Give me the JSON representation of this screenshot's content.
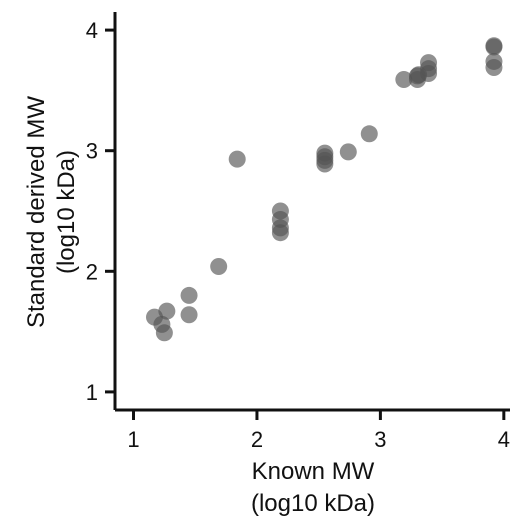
{
  "chart_data": {
    "type": "scatter",
    "title": "",
    "xlabel": [
      "Known MW",
      "(log10 kDa)"
    ],
    "ylabel": [
      "Standard derived MW",
      "(log10 kDa)"
    ],
    "xlim": [
      0.85,
      4.05
    ],
    "ylim": [
      0.85,
      4.15
    ],
    "x_ticks": [
      1,
      2,
      3,
      4
    ],
    "y_ticks": [
      1,
      2,
      3,
      4
    ],
    "x_tick_labels": [
      "1",
      "2",
      "3",
      "4"
    ],
    "y_tick_labels": [
      "1",
      "2",
      "3",
      "4"
    ],
    "grid": false,
    "legend": "none",
    "point_color": "#555555",
    "point_opacity": 0.65,
    "points": [
      {
        "x": 1.17,
        "y": 1.62
      },
      {
        "x": 1.23,
        "y": 1.56
      },
      {
        "x": 1.25,
        "y": 1.49
      },
      {
        "x": 1.27,
        "y": 1.67
      },
      {
        "x": 1.45,
        "y": 1.8
      },
      {
        "x": 1.45,
        "y": 1.64
      },
      {
        "x": 1.69,
        "y": 2.04
      },
      {
        "x": 1.84,
        "y": 2.93
      },
      {
        "x": 2.19,
        "y": 2.5
      },
      {
        "x": 2.19,
        "y": 2.43
      },
      {
        "x": 2.19,
        "y": 2.36
      },
      {
        "x": 2.19,
        "y": 2.32
      },
      {
        "x": 2.55,
        "y": 2.98
      },
      {
        "x": 2.55,
        "y": 2.95
      },
      {
        "x": 2.55,
        "y": 2.92
      },
      {
        "x": 2.55,
        "y": 2.89
      },
      {
        "x": 2.74,
        "y": 2.99
      },
      {
        "x": 2.91,
        "y": 3.14
      },
      {
        "x": 3.19,
        "y": 3.59
      },
      {
        "x": 3.3,
        "y": 3.59
      },
      {
        "x": 3.3,
        "y": 3.62
      },
      {
        "x": 3.31,
        "y": 3.63
      },
      {
        "x": 3.39,
        "y": 3.73
      },
      {
        "x": 3.39,
        "y": 3.68
      },
      {
        "x": 3.39,
        "y": 3.64
      },
      {
        "x": 3.92,
        "y": 3.87
      },
      {
        "x": 3.92,
        "y": 3.86
      },
      {
        "x": 3.92,
        "y": 3.74
      },
      {
        "x": 3.92,
        "y": 3.69
      }
    ]
  }
}
